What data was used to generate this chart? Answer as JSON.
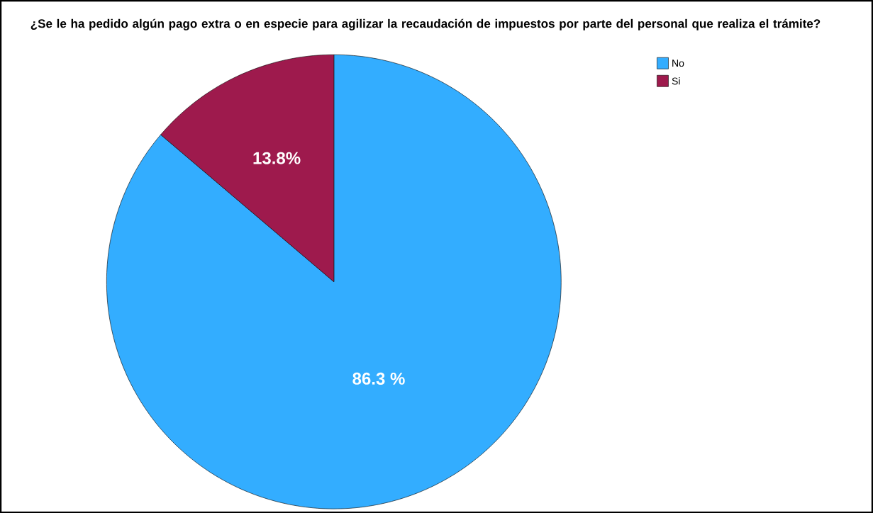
{
  "chart_data": {
    "type": "pie",
    "title": "¿Se le ha pedido algún pago extra o en especie para agilizar la recaudación de impuestos por parte del personal que realiza el trámite?",
    "categories": [
      "No",
      "Si"
    ],
    "values": [
      86.3,
      13.8
    ],
    "colors": [
      "#33adff",
      "#9e1a4d"
    ],
    "value_labels": [
      "86.3 %",
      "13.8%"
    ],
    "legend": "top right"
  }
}
